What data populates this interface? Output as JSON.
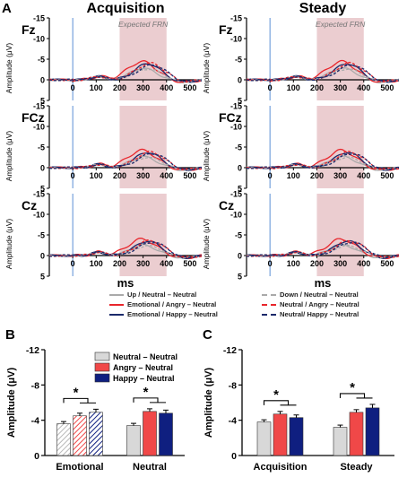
{
  "colors": {
    "neutral_neutral": "#aaaaaa",
    "angry": "#e8262c",
    "happy": "#1b2a6b",
    "frn_window": "#e8c4c8",
    "bar_gray": "#d8d8d8",
    "bar_red": "#f04848",
    "bar_navy": "#0f1f80"
  },
  "erp": {
    "columns": [
      {
        "title": "Acquisition",
        "window_label": "Expected FRN"
      },
      {
        "title": "Steady",
        "window_label": "Expected FRN"
      }
    ],
    "rows": [
      {
        "electrode": "Fz"
      },
      {
        "electrode": "FCz"
      },
      {
        "electrode": "Cz"
      }
    ],
    "y_label": "Amplitude (μV)",
    "x_label": "ms",
    "y_ticks": [
      "-15",
      "-10",
      "-5",
      "0",
      "5"
    ],
    "x_ticks": [
      "0",
      "100",
      "200",
      "300",
      "400",
      "500"
    ],
    "panel_letter": "A"
  },
  "legend": [
    {
      "label": "Up / Neutral – Neutral",
      "color": "#aaaaaa",
      "dashed": false
    },
    {
      "label": "Emotional / Angry – Neutral",
      "color": "#e8262c",
      "dashed": false
    },
    {
      "label": "Emotional / Happy – Neutral",
      "color": "#1b2a6b",
      "dashed": false
    },
    {
      "label": "Down / Neutral – Neutral",
      "color": "#aaaaaa",
      "dashed": true
    },
    {
      "label": "Neutral / Angry – Neutral",
      "color": "#e8262c",
      "dashed": true
    },
    {
      "label": "Neutral/ Happy – Neutral",
      "color": "#1b2a6b",
      "dashed": true
    }
  ],
  "chart_data": [
    {
      "type": "line",
      "panel": "A",
      "xlabel": "ms",
      "ylabel": "Amplitude (μV)",
      "xlim": [
        -100,
        550
      ],
      "ylim": [
        5,
        -15
      ],
      "shaded_window": [
        200,
        400
      ],
      "annotation": "Expected FRN",
      "note": "ERP waveforms, 3 electrodes (Fz, FCz, Cz) x 2 phases (Acquisition, Steady); negative up"
    },
    {
      "type": "bar",
      "panel": "B",
      "categories": [
        "Emotional",
        "Neutral"
      ],
      "series": [
        {
          "name": "Neutral – Neutral",
          "values": [
            -3.6,
            -3.4
          ],
          "errors": [
            0.25,
            0.25
          ]
        },
        {
          "name": "Angry – Neutral",
          "values": [
            -4.5,
            -5.0
          ],
          "errors": [
            0.3,
            0.3
          ]
        },
        {
          "name": "Happy – Neutral",
          "values": [
            -4.9,
            -4.8
          ],
          "errors": [
            0.35,
            0.35
          ]
        }
      ],
      "ylabel": "Amplitude (μV)",
      "ylim": [
        0,
        -12
      ],
      "yticks": [
        "-12",
        "-8",
        "-4",
        "0"
      ],
      "significance": [
        "*",
        "*"
      ]
    },
    {
      "type": "bar",
      "panel": "C",
      "categories": [
        "Acquisition",
        "Steady"
      ],
      "series": [
        {
          "name": "Neutral – Neutral",
          "values": [
            -3.8,
            -3.2
          ],
          "errors": [
            0.25,
            0.25
          ]
        },
        {
          "name": "Angry – Neutral",
          "values": [
            -4.7,
            -4.9
          ],
          "errors": [
            0.3,
            0.3
          ]
        },
        {
          "name": "Happy – Neutral",
          "values": [
            -4.3,
            -5.4
          ],
          "errors": [
            0.3,
            0.4
          ]
        }
      ],
      "ylabel": "Amplitude (μV)",
      "ylim": [
        0,
        -12
      ],
      "yticks": [
        "-12",
        "-8",
        "-4",
        "0"
      ],
      "significance": [
        "*",
        "*"
      ]
    }
  ]
}
